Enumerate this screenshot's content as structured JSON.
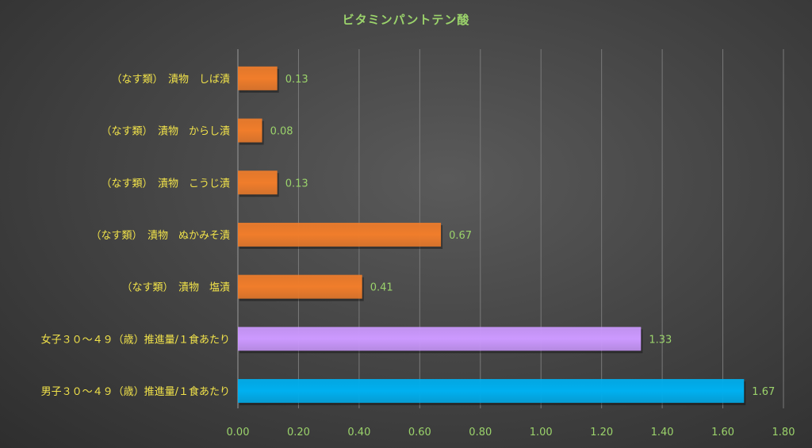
{
  "chart_data": {
    "type": "bar",
    "orientation": "horizontal",
    "title": "ビタミンパントテン酸",
    "xlabel": "",
    "ylabel": "",
    "xlim": [
      0,
      1.8
    ],
    "x_ticks": [
      "0.00",
      "0.20",
      "0.40",
      "0.60",
      "0.80",
      "1.00",
      "1.20",
      "1.40",
      "1.60",
      "1.80"
    ],
    "grid": true,
    "legend": "none",
    "categories": [
      "（なす類）　漬物　しば漬",
      "（なす類）　漬物　からし漬",
      "（なす類）　漬物　こうじ漬",
      "（なす類）　漬物　ぬかみそ漬",
      "（なす類）　漬物　塩漬",
      "女子３０～４９（歳）推進量/１食あたり",
      "男子３０～４９（歳）推進量/１食あたり"
    ],
    "values": [
      0.13,
      0.08,
      0.13,
      0.67,
      0.41,
      1.33,
      1.67
    ],
    "value_labels": [
      "0.13",
      "0.08",
      "0.13",
      "0.67",
      "0.41",
      "1.33",
      "1.67"
    ],
    "bar_colors": [
      "#f07d2b",
      "#f07d2b",
      "#f07d2b",
      "#f07d2b",
      "#f07d2b",
      "#cc99ff",
      "#00b0f0"
    ],
    "colors": {
      "title": "#9bd36b",
      "category_label": "#f2e34a",
      "value_label": "#9bd36b",
      "tick_label": "#9bd36b",
      "gridline": "#7a7a7a"
    }
  }
}
